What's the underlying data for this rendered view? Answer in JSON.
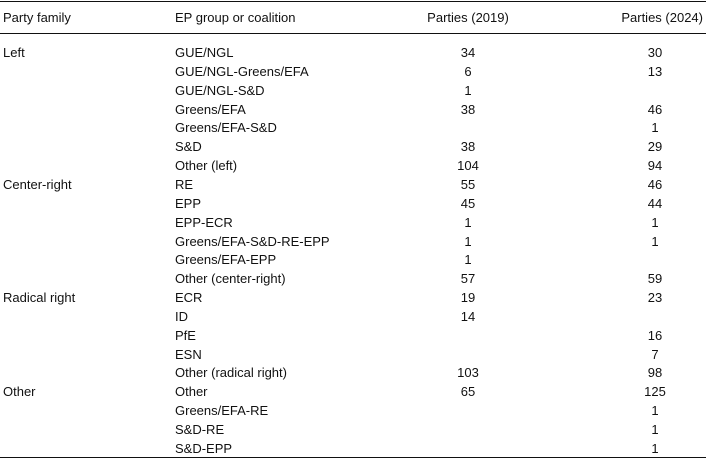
{
  "table": {
    "header": [
      "Party family",
      "EP group or coalition",
      "Parties (2019)",
      "Parties (2024)"
    ],
    "rows": [
      [
        "Left",
        "GUE/NGL",
        34,
        30
      ],
      [
        null,
        "GUE/NGL-Greens/EFA",
        6,
        13
      ],
      [
        null,
        "GUE/NGL-S&D",
        1,
        null
      ],
      [
        null,
        "Greens/EFA",
        38,
        46
      ],
      [
        null,
        "Greens/EFA-S&D",
        null,
        1
      ],
      [
        null,
        "S&D",
        38,
        29
      ],
      [
        null,
        "Other (left)",
        104,
        94
      ],
      [
        "Center-right",
        "RE",
        55,
        46
      ],
      [
        null,
        "EPP",
        45,
        44
      ],
      [
        null,
        "EPP-ECR",
        1,
        1
      ],
      [
        null,
        "Greens/EFA-S&D-RE-EPP",
        1,
        1
      ],
      [
        null,
        "Greens/EFA-EPP",
        1,
        null
      ],
      [
        null,
        "Other (center-right)",
        57,
        59
      ],
      [
        "Radical right",
        "ECR",
        19,
        23
      ],
      [
        null,
        "ID",
        14,
        null
      ],
      [
        null,
        "PfE",
        null,
        16
      ],
      [
        null,
        "ESN",
        null,
        7
      ],
      [
        null,
        "Other (radical right)",
        103,
        98
      ],
      [
        "Other",
        "Other",
        65,
        125
      ],
      [
        null,
        "Greens/EFA-RE",
        null,
        1
      ],
      [
        null,
        "S&D-RE",
        null,
        1
      ],
      [
        null,
        "S&D-EPP",
        null,
        1
      ]
    ]
  }
}
